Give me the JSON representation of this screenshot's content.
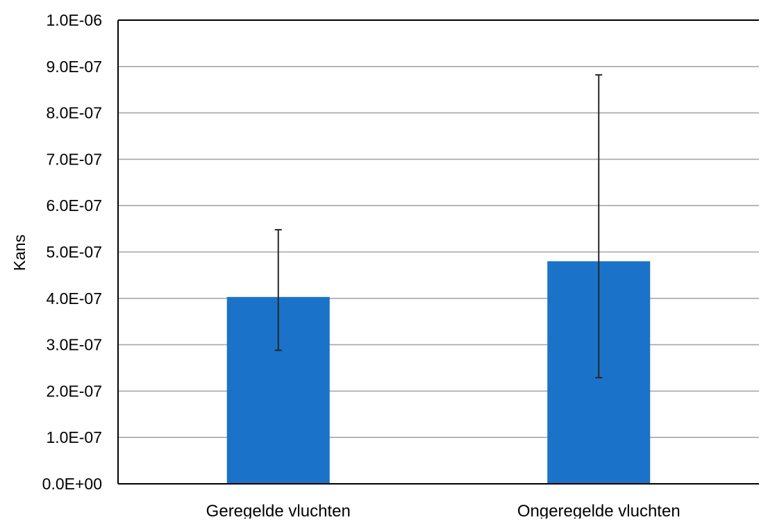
{
  "chart_data": {
    "type": "bar",
    "title": "",
    "xlabel": "",
    "ylabel": "Kans",
    "categories": [
      "Geregelde vluchten",
      "Ongeregelde vluchten"
    ],
    "series": [
      {
        "values": [
          4.03e-07,
          4.8e-07
        ],
        "error_low": [
          2.88e-07,
          2.29e-07
        ],
        "error_high": [
          5.48e-07,
          8.82e-07
        ],
        "color": "#1a73c8"
      }
    ],
    "ylim": [
      0,
      1e-06
    ],
    "yticks": [
      0,
      1e-07,
      2e-07,
      3e-07,
      4e-07,
      5e-07,
      6e-07,
      7e-07,
      8e-07,
      9e-07,
      1e-06
    ],
    "ytick_labels": [
      "0.0E+00",
      "1.0E-07",
      "2.0E-07",
      "3.0E-07",
      "4.0E-07",
      "5.0E-07",
      "6.0E-07",
      "7.0E-07",
      "8.0E-07",
      "9.0E-07",
      "1.0E-06"
    ],
    "grid": true,
    "legend": "none",
    "colors": {
      "bar": "#1a73c8",
      "gridline": "#a6a6a6",
      "frame": "#000000",
      "errorbar": "#262626"
    }
  }
}
